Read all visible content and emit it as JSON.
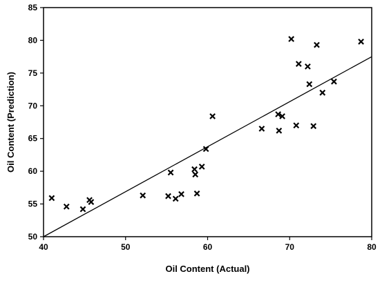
{
  "chart_data": {
    "type": "scatter",
    "xlabel": "Oil Content (Actual)",
    "ylabel": "Oil Content (Prediction)",
    "xlim": [
      40,
      80
    ],
    "ylim": [
      50,
      85
    ],
    "x_ticks": [
      40,
      50,
      60,
      70,
      80
    ],
    "y_ticks": [
      50,
      55,
      60,
      65,
      70,
      75,
      80,
      85
    ],
    "grid": false,
    "marker": "x",
    "series": [
      {
        "points": [
          {
            "x": 41.0,
            "y": 55.9
          },
          {
            "x": 42.8,
            "y": 54.6
          },
          {
            "x": 44.8,
            "y": 54.2
          },
          {
            "x": 45.6,
            "y": 55.6
          },
          {
            "x": 45.8,
            "y": 55.3
          },
          {
            "x": 52.1,
            "y": 56.3
          },
          {
            "x": 55.2,
            "y": 56.2
          },
          {
            "x": 55.5,
            "y": 59.8
          },
          {
            "x": 56.1,
            "y": 55.8
          },
          {
            "x": 56.8,
            "y": 56.5
          },
          {
            "x": 58.4,
            "y": 60.3
          },
          {
            "x": 58.5,
            "y": 59.5
          },
          {
            "x": 58.7,
            "y": 56.6
          },
          {
            "x": 59.3,
            "y": 60.7
          },
          {
            "x": 59.8,
            "y": 63.4
          },
          {
            "x": 60.6,
            "y": 68.4
          },
          {
            "x": 66.6,
            "y": 66.5
          },
          {
            "x": 68.6,
            "y": 68.7
          },
          {
            "x": 68.7,
            "y": 66.2
          },
          {
            "x": 69.1,
            "y": 68.4
          },
          {
            "x": 70.2,
            "y": 80.2
          },
          {
            "x": 70.8,
            "y": 67.0
          },
          {
            "x": 71.1,
            "y": 76.4
          },
          {
            "x": 72.2,
            "y": 76.0
          },
          {
            "x": 72.4,
            "y": 73.3
          },
          {
            "x": 72.9,
            "y": 66.9
          },
          {
            "x": 73.3,
            "y": 79.3
          },
          {
            "x": 74.0,
            "y": 72.0
          },
          {
            "x": 75.4,
            "y": 73.7
          },
          {
            "x": 78.7,
            "y": 79.8
          }
        ]
      }
    ],
    "trendline": {
      "x1": 40,
      "y1": 50,
      "x2": 80,
      "y2": 77.5
    }
  }
}
